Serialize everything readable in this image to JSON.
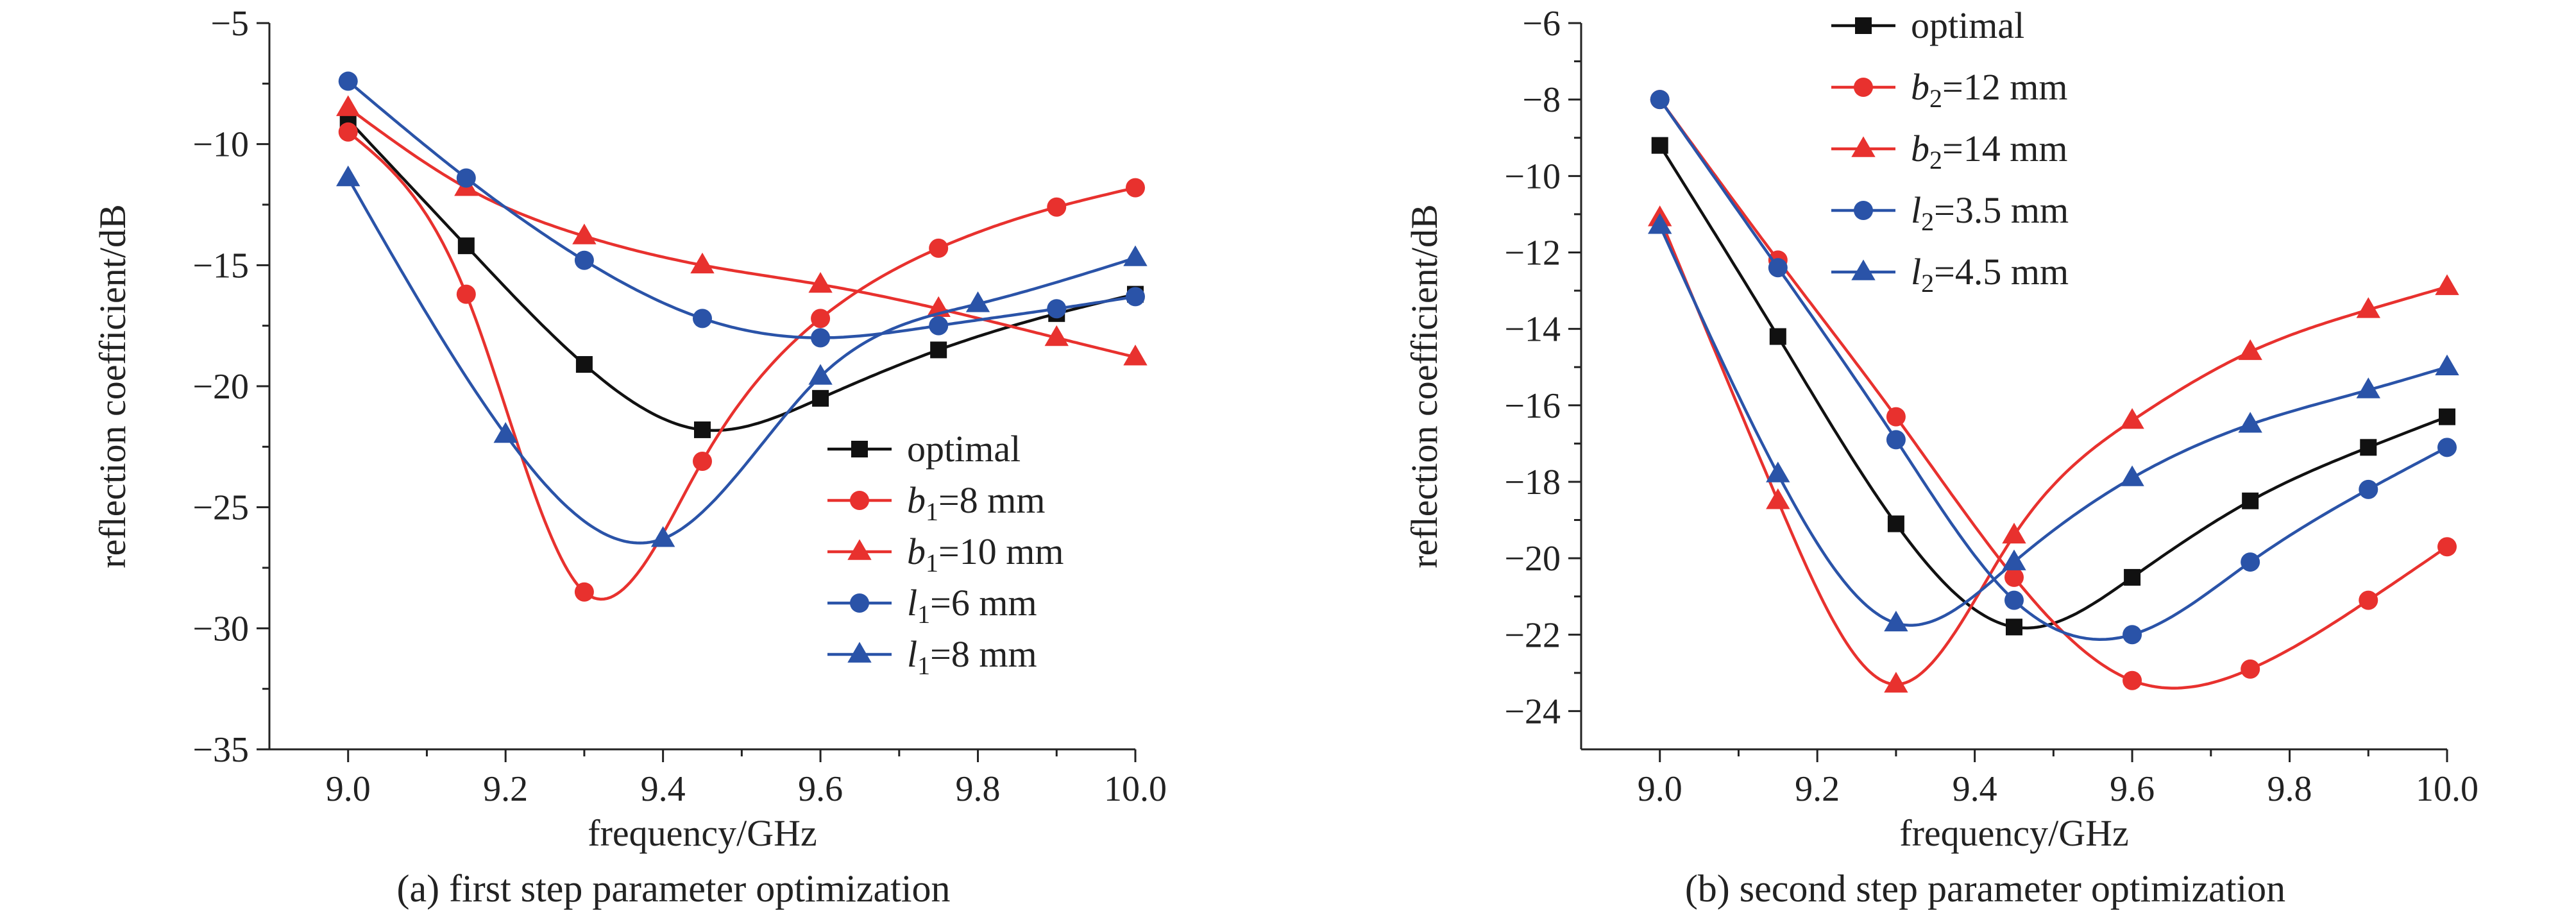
{
  "chart_data": [
    {
      "type": "line",
      "caption": "(a) first step parameter optimization",
      "xlabel": "frequency/GHz",
      "ylabel": "reflection coefficient/dB",
      "xlim": [
        8.9,
        10.0
      ],
      "ylim": [
        -35,
        -5
      ],
      "xticks": [
        9.0,
        9.2,
        9.4,
        9.6,
        9.8,
        10.0
      ],
      "xtick_labels": [
        "9.0",
        "9.2",
        "9.4",
        "9.6",
        "9.8",
        "10.0"
      ],
      "yticks": [
        -35,
        -30,
        -25,
        -20,
        -15,
        -10,
        -5
      ],
      "ytick_labels": [
        "−35",
        "−30",
        "−25",
        "−20",
        "−15",
        "−10",
        "−5"
      ],
      "grid": false,
      "legend_position": "lower-right",
      "series": [
        {
          "name": "optimal",
          "sub": "",
          "name_suffix": "",
          "color": "#111111",
          "marker": "square",
          "x": [
            9.0,
            9.15,
            9.3,
            9.45,
            9.6,
            9.75,
            9.9,
            10.0
          ],
          "y": [
            -9.0,
            -14.2,
            -19.1,
            -21.8,
            -20.5,
            -18.5,
            -17.0,
            -16.2
          ]
        },
        {
          "name": "b",
          "sub": "1",
          "name_suffix": "=8 mm",
          "color": "#e8312e",
          "marker": "circle",
          "x": [
            9.0,
            9.15,
            9.3,
            9.45,
            9.6,
            9.75,
            9.9,
            10.0
          ],
          "y": [
            -9.5,
            -16.2,
            -28.5,
            -23.1,
            -17.2,
            -14.3,
            -12.6,
            -11.8
          ]
        },
        {
          "name": "b",
          "sub": "1",
          "name_suffix": "=10 mm",
          "color": "#e8312e",
          "marker": "triangle",
          "x": [
            9.0,
            9.15,
            9.3,
            9.45,
            9.6,
            9.75,
            9.9,
            10.0
          ],
          "y": [
            -8.5,
            -11.8,
            -13.8,
            -15.0,
            -15.8,
            -16.8,
            -18.0,
            -18.8
          ]
        },
        {
          "name": "l",
          "sub": "1",
          "name_suffix": "=6 mm",
          "color": "#2a53a8",
          "marker": "circle",
          "x": [
            9.0,
            9.15,
            9.3,
            9.45,
            9.6,
            9.75,
            9.9,
            10.0
          ],
          "y": [
            -7.4,
            -11.4,
            -14.8,
            -17.2,
            -18.0,
            -17.5,
            -16.8,
            -16.3
          ]
        },
        {
          "name": "l",
          "sub": "1",
          "name_suffix": "=8 mm",
          "color": "#2a53a8",
          "marker": "triangle",
          "x": [
            9.0,
            9.2,
            9.4,
            9.6,
            9.8,
            10.0
          ],
          "y": [
            -11.4,
            -22.0,
            -26.3,
            -19.6,
            -16.6,
            -14.7
          ]
        }
      ]
    },
    {
      "type": "line",
      "caption": "(b) second step parameter optimization",
      "xlabel": "frequency/GHz",
      "ylabel": "reflection coefficient/dB",
      "xlim": [
        8.9,
        10.0
      ],
      "ylim": [
        -25,
        -6
      ],
      "xticks": [
        9.0,
        9.2,
        9.4,
        9.6,
        9.8,
        10.0
      ],
      "xtick_labels": [
        "9.0",
        "9.2",
        "9.4",
        "9.6",
        "9.8",
        "10.0"
      ],
      "yticks": [
        -24,
        -22,
        -20,
        -18,
        -16,
        -14,
        -12,
        -10,
        -8,
        -6
      ],
      "ytick_labels": [
        "−24",
        "−22",
        "−20",
        "−18",
        "−16",
        "−14",
        "−12",
        "−10",
        "−8",
        "−6"
      ],
      "grid": false,
      "legend_position": "top-left",
      "series": [
        {
          "name": "optimal",
          "sub": "",
          "name_suffix": "",
          "color": "#111111",
          "marker": "square",
          "x": [
            9.0,
            9.15,
            9.3,
            9.45,
            9.6,
            9.75,
            9.9,
            10.0
          ],
          "y": [
            -9.2,
            -14.2,
            -19.1,
            -21.8,
            -20.5,
            -18.5,
            -17.1,
            -16.3
          ]
        },
        {
          "name": "b",
          "sub": "2",
          "name_suffix": "=12 mm",
          "color": "#e8312e",
          "marker": "circle",
          "x": [
            9.0,
            9.15,
            9.3,
            9.45,
            9.6,
            9.75,
            9.9,
            10.0
          ],
          "y": [
            -8.0,
            -12.2,
            -16.3,
            -20.5,
            -23.2,
            -22.9,
            -21.1,
            -19.7
          ]
        },
        {
          "name": "b",
          "sub": "2",
          "name_suffix": "=14 mm",
          "color": "#e8312e",
          "marker": "triangle",
          "x": [
            9.0,
            9.15,
            9.3,
            9.45,
            9.6,
            9.75,
            9.9,
            10.0
          ],
          "y": [
            -11.1,
            -18.5,
            -23.3,
            -19.4,
            -16.4,
            -14.6,
            -13.5,
            -12.9
          ]
        },
        {
          "name": "l",
          "sub": "2",
          "name_suffix": "=3.5 mm",
          "color": "#2a53a8",
          "marker": "circle",
          "x": [
            9.0,
            9.15,
            9.3,
            9.45,
            9.6,
            9.75,
            9.9,
            10.0
          ],
          "y": [
            -8.0,
            -12.4,
            -16.9,
            -21.1,
            -22.0,
            -20.1,
            -18.2,
            -17.1
          ]
        },
        {
          "name": "l",
          "sub": "2",
          "name_suffix": "=4.5 mm",
          "color": "#2a53a8",
          "marker": "triangle",
          "x": [
            9.0,
            9.15,
            9.3,
            9.45,
            9.6,
            9.75,
            9.9,
            10.0
          ],
          "y": [
            -11.3,
            -17.8,
            -21.7,
            -20.1,
            -17.9,
            -16.5,
            -15.6,
            -15.0
          ]
        }
      ]
    }
  ]
}
